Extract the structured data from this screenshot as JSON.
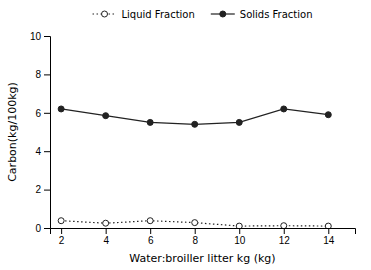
{
  "chart_data": {
    "type": "line",
    "x": [
      2,
      4,
      6,
      8,
      10,
      12,
      14
    ],
    "series": [
      {
        "name": "Liquid Fraction",
        "color": "#222222",
        "marker": "circle-open",
        "line_style": "dotted",
        "values": [
          0.38,
          0.25,
          0.38,
          0.28,
          0.1,
          0.12,
          0.1
        ]
      },
      {
        "name": "Solids Fraction",
        "color": "#222222",
        "marker": "circle",
        "line_style": "solid",
        "values": [
          6.2,
          5.85,
          5.5,
          5.4,
          5.5,
          6.2,
          5.9
        ]
      }
    ],
    "xlabel": "Water:broiller litter kg (kg)",
    "ylabel": "Carbon(kg/100kg)",
    "xlim": [
      1.5,
      15.2
    ],
    "xticks": [
      2,
      4,
      6,
      8,
      10,
      12,
      14
    ],
    "ylim": [
      0,
      10
    ],
    "yticks": [
      0,
      2,
      4,
      6,
      8,
      10
    ],
    "grid": false,
    "legend": "top"
  }
}
